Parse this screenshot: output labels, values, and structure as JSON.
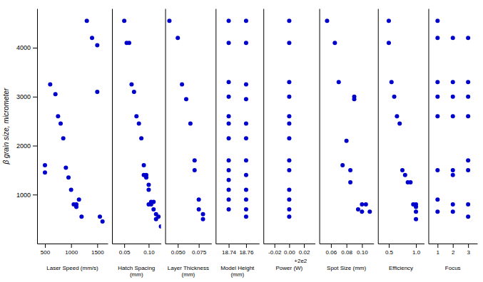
{
  "chart_data": [
    {
      "type": "scatter",
      "x_label": "Laser Speed (mm/s)",
      "y_label": "β grain size, micrometer",
      "color": "#0000cc",
      "xlim": [
        350,
        1700
      ],
      "xticks": [
        500,
        1000,
        1500
      ],
      "ylim": [
        0,
        4800
      ],
      "yticks": [
        1000,
        2000,
        3000,
        4000
      ],
      "x": [
        500,
        500,
        600,
        700,
        750,
        800,
        850,
        900,
        950,
        1000,
        1050,
        1100,
        1100,
        1150,
        1200,
        1300,
        1400,
        1500,
        1500,
        1550,
        1600
      ],
      "y": [
        1600,
        1450,
        3250,
        3050,
        2600,
        2450,
        2150,
        1550,
        1350,
        1100,
        800,
        800,
        750,
        900,
        550,
        4550,
        4200,
        4050,
        3100,
        550,
        450
      ]
    },
    {
      "type": "scatter",
      "x_label": "Hatch Spacing (mm)",
      "color": "#0000cc",
      "tick_labels": "x",
      "xlim": [
        0.025,
        0.125
      ],
      "xticks": [
        0.05,
        {
          "value": 0.1,
          "label": "0.10"
        }
      ],
      "ylim": [
        0,
        4800
      ],
      "x": [
        0.05,
        0.055,
        0.06,
        0.065,
        0.07,
        0.075,
        0.08,
        0.085,
        0.09,
        0.09,
        0.095,
        0.095,
        0.1,
        0.1,
        0.1,
        0.105,
        0.105,
        0.11,
        0.11,
        0.115,
        0.115,
        0.12,
        0.125
      ],
      "y": [
        4550,
        4100,
        4100,
        3250,
        3100,
        2600,
        2450,
        2150,
        1600,
        1400,
        1400,
        1350,
        1200,
        1100,
        800,
        850,
        800,
        850,
        700,
        600,
        500,
        550,
        350
      ]
    },
    {
      "type": "scatter",
      "x_label": "Layer Thickness (mm)",
      "color": "#0000cc",
      "tick_labels": "x",
      "xlim": [
        0.035,
        0.09
      ],
      "xticks": [
        {
          "value": 0.05,
          "label": "0.050"
        },
        {
          "value": 0.075,
          "label": "0.075"
        }
      ],
      "ylim": [
        0,
        4800
      ],
      "x": [
        0.04,
        0.05,
        0.055,
        0.06,
        0.065,
        0.07,
        0.07,
        0.075,
        0.075,
        0.08,
        0.08
      ],
      "y": [
        4550,
        4200,
        3250,
        2950,
        2450,
        1700,
        1500,
        900,
        700,
        600,
        500
      ]
    },
    {
      "type": "scatter",
      "x_label": "Model Height (mm)",
      "color": "#0000cc",
      "tick_labels": "x",
      "xlim": [
        18.725,
        18.775
      ],
      "xticks": [
        18.74,
        18.76
      ],
      "ylim": [
        0,
        4800
      ],
      "x": [
        18.74,
        18.74,
        18.74,
        18.74,
        18.74,
        18.74,
        18.74,
        18.74,
        18.74,
        18.74,
        18.74,
        18.74,
        18.74,
        18.76,
        18.76,
        18.76,
        18.76,
        18.76,
        18.76,
        18.76,
        18.76,
        18.76,
        18.76,
        18.76,
        18.76
      ],
      "y": [
        4550,
        4100,
        3300,
        3000,
        2600,
        2450,
        2150,
        1700,
        1500,
        1300,
        1100,
        900,
        700,
        4550,
        4100,
        3250,
        2950,
        2450,
        2150,
        1700,
        1400,
        1100,
        900,
        700,
        550
      ]
    },
    {
      "type": "scatter",
      "x_label": "Power (W)",
      "annotation": "+2e2",
      "color": "#0000cc",
      "tick_labels": "x",
      "xlim": [
        -0.035,
        0.035
      ],
      "xticks": [
        -0.02,
        {
          "value": 0,
          "label": "0.00"
        },
        0.02
      ],
      "ylim": [
        0,
        4800
      ],
      "x": [
        0.0,
        0.0,
        0.0,
        0.0,
        0.0,
        0.0,
        0.0,
        0.0,
        0.0,
        0.0,
        0.0,
        0.0,
        0.0
      ],
      "y": [
        4550,
        4100,
        3300,
        3000,
        2600,
        2450,
        2150,
        1700,
        1500,
        1100,
        900,
        700,
        550
      ]
    },
    {
      "type": "scatter",
      "x_label": "Spot Size (mm)",
      "color": "#0000cc",
      "tick_labels": "x",
      "xlim": [
        0.045,
        0.115
      ],
      "xticks": [
        0.06,
        0.08,
        {
          "value": 0.1,
          "label": "0.10"
        }
      ],
      "ylim": [
        0,
        4800
      ],
      "x": [
        0.055,
        0.065,
        0.07,
        0.075,
        0.08,
        0.085,
        0.085,
        0.09,
        0.09,
        0.095,
        0.1,
        0.1,
        0.105,
        0.11
      ],
      "y": [
        4550,
        4100,
        3300,
        1600,
        2100,
        1500,
        1250,
        3000,
        2950,
        700,
        800,
        650,
        800,
        650
      ]
    },
    {
      "type": "scatter",
      "x_label": "Efficiency",
      "color": "#0000cc",
      "tick_labels": "x",
      "xlim": [
        0.3,
        1.15
      ],
      "xticks": [
        0.5,
        {
          "value": 1,
          "label": "1.0"
        }
      ],
      "ylim": [
        0,
        4800
      ],
      "x": [
        0.5,
        0.5,
        0.55,
        0.6,
        0.65,
        0.7,
        0.75,
        0.8,
        0.85,
        0.9,
        0.95,
        1.0,
        1.0,
        1.0,
        1.0
      ],
      "y": [
        4550,
        4100,
        3300,
        3000,
        2600,
        2450,
        1500,
        1400,
        1250,
        1250,
        800,
        800,
        750,
        650,
        500
      ]
    },
    {
      "type": "scatter",
      "x_label": "Focus",
      "color": "#0000cc",
      "tick_labels": "x",
      "xlim": [
        0.4,
        3.6
      ],
      "xticks": [
        1,
        2,
        3
      ],
      "ylim": [
        0,
        4800
      ],
      "x": [
        1,
        1,
        1,
        1,
        1,
        1,
        1,
        1,
        2,
        2,
        2,
        2,
        2,
        2,
        2,
        2,
        3,
        3,
        3,
        3,
        3,
        3,
        3,
        3
      ],
      "y": [
        4550,
        4200,
        3300,
        3000,
        2600,
        1500,
        900,
        650,
        4200,
        3300,
        3000,
        2600,
        1500,
        1400,
        800,
        650,
        4200,
        3300,
        3000,
        2600,
        1700,
        1500,
        800,
        550
      ]
    }
  ]
}
